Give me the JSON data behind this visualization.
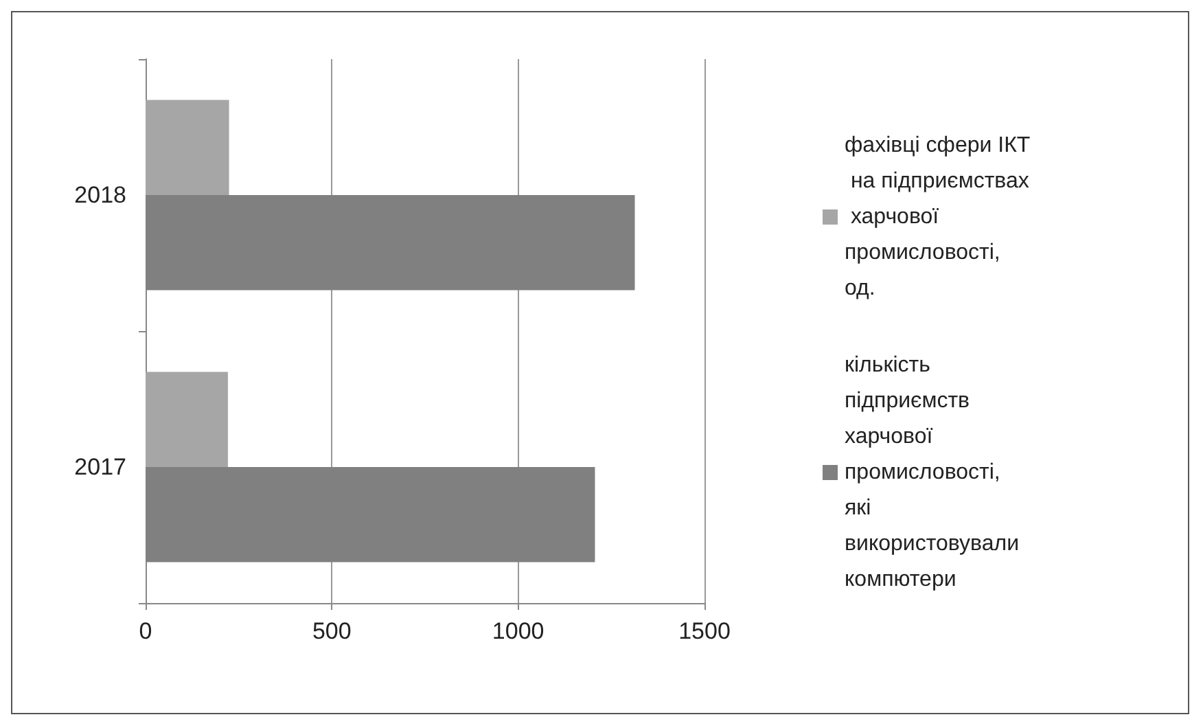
{
  "chart_data": {
    "type": "bar",
    "orientation": "horizontal",
    "categories": [
      "2018",
      "2017"
    ],
    "series": [
      {
        "name": "фахівці сфери ІКТ на підприємствах харчової промисловості, од.",
        "color": "#a6a6a6",
        "values": [
          224,
          221
        ]
      },
      {
        "name": "кількість підприємств харчової промисловості, які використовували компютери",
        "color": "#808080",
        "values": [
          1313,
          1206
        ]
      }
    ],
    "xlim": [
      0,
      1500
    ],
    "xticks": [
      0,
      500,
      1000,
      1500
    ],
    "grid": "x",
    "legend": "right"
  }
}
